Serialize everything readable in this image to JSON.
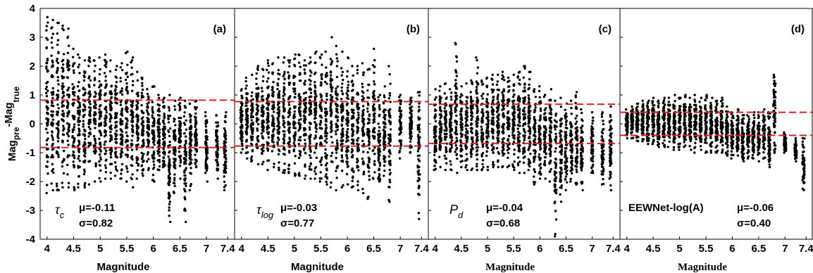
{
  "chart_data": {
    "type": "scatter",
    "ylabel": {
      "main": "Mag",
      "sub1": "pre",
      "mid": "-Mag",
      "sub2": "true"
    },
    "ylim": [
      -4,
      4
    ],
    "yticks": [
      "4",
      "3",
      "2",
      "1",
      "0",
      "-1",
      "-2",
      "-3",
      "-4"
    ],
    "xlim": [
      3.95,
      7.45
    ],
    "xticks": [
      "4",
      "4.5",
      "5",
      "5.5",
      "6",
      "6.5",
      "7",
      "7.4"
    ],
    "xtick_values": [
      4,
      4.5,
      5,
      5.5,
      6,
      6.5,
      7,
      7.4
    ],
    "grid": false,
    "panels": [
      {
        "tag": "(a)",
        "method": {
          "main": "τ",
          "sub": "c"
        },
        "mu": "μ=-0.11",
        "sigma": "σ=0.82",
        "xlabel": "Magnitude",
        "xlabel_serif": false,
        "band": [
          -0.82,
          0.82
        ],
        "columns": [
          {
            "x": 4.0,
            "min": -2.4,
            "max": 3.7
          },
          {
            "x": 4.1,
            "min": -2.3,
            "max": 3.6
          },
          {
            "x": 4.2,
            "min": -2.3,
            "max": 3.5
          },
          {
            "x": 4.3,
            "min": -2.2,
            "max": 3.4
          },
          {
            "x": 4.4,
            "min": -2.2,
            "max": 3.3
          },
          {
            "x": 4.5,
            "min": -2.3,
            "max": 2.6
          },
          {
            "x": 4.6,
            "min": -2.2,
            "max": 2.4
          },
          {
            "x": 4.7,
            "min": -2.2,
            "max": 2.2
          },
          {
            "x": 4.8,
            "min": -2.1,
            "max": 2.3
          },
          {
            "x": 4.9,
            "min": -2.0,
            "max": 2.2
          },
          {
            "x": 5.0,
            "min": -2.0,
            "max": 2.3
          },
          {
            "x": 5.1,
            "min": -1.9,
            "max": 2.4
          },
          {
            "x": 5.2,
            "min": -1.9,
            "max": 2.2
          },
          {
            "x": 5.3,
            "min": -1.8,
            "max": 2.0
          },
          {
            "x": 5.4,
            "min": -1.9,
            "max": 2.1
          },
          {
            "x": 5.5,
            "min": -2.0,
            "max": 2.5
          },
          {
            "x": 5.6,
            "min": -2.2,
            "max": 2.3
          },
          {
            "x": 5.7,
            "min": -1.9,
            "max": 1.8
          },
          {
            "x": 5.8,
            "min": -1.8,
            "max": 1.6
          },
          {
            "x": 5.9,
            "min": -1.6,
            "max": 1.2
          },
          {
            "x": 6.0,
            "min": -2.0,
            "max": 1.3
          },
          {
            "x": 6.1,
            "min": -1.6,
            "max": 1.0
          },
          {
            "x": 6.2,
            "min": -1.5,
            "max": 0.9
          },
          {
            "x": 6.3,
            "min": -3.4,
            "max": 1.0
          },
          {
            "x": 6.4,
            "min": -2.4,
            "max": 0.8
          },
          {
            "x": 6.5,
            "min": -1.9,
            "max": 0.9
          },
          {
            "x": 6.6,
            "min": -3.4,
            "max": 0.8
          },
          {
            "x": 6.7,
            "min": -2.3,
            "max": 0.7
          },
          {
            "x": 6.8,
            "min": -1.5,
            "max": 0.8
          },
          {
            "x": 7.0,
            "min": -2.0,
            "max": 0.4
          },
          {
            "x": 7.2,
            "min": -1.9,
            "max": 0.3
          },
          {
            "x": 7.35,
            "min": -2.3,
            "max": 0.4
          }
        ]
      },
      {
        "tag": "(b)",
        "method": {
          "main": "τ",
          "sub": "log"
        },
        "mu": "μ=-0.03",
        "sigma": "σ=0.77",
        "xlabel": "Magnitude",
        "xlabel_serif": false,
        "band": [
          -0.77,
          0.77
        ],
        "columns": [
          {
            "x": 4.0,
            "min": -1.0,
            "max": 1.2
          },
          {
            "x": 4.1,
            "min": -1.2,
            "max": 1.6
          },
          {
            "x": 4.2,
            "min": -1.3,
            "max": 1.7
          },
          {
            "x": 4.3,
            "min": -1.4,
            "max": 2.0
          },
          {
            "x": 4.4,
            "min": -1.4,
            "max": 1.9
          },
          {
            "x": 4.5,
            "min": -1.6,
            "max": 2.2
          },
          {
            "x": 4.6,
            "min": -1.5,
            "max": 2.1
          },
          {
            "x": 4.7,
            "min": -1.6,
            "max": 2.3
          },
          {
            "x": 4.8,
            "min": -1.7,
            "max": 2.3
          },
          {
            "x": 4.9,
            "min": -1.7,
            "max": 2.2
          },
          {
            "x": 5.0,
            "min": -1.8,
            "max": 2.4
          },
          {
            "x": 5.1,
            "min": -1.8,
            "max": 2.4
          },
          {
            "x": 5.2,
            "min": -1.9,
            "max": 2.2
          },
          {
            "x": 5.3,
            "min": -1.9,
            "max": 2.3
          },
          {
            "x": 5.4,
            "min": -1.9,
            "max": 2.5
          },
          {
            "x": 5.5,
            "min": -2.0,
            "max": 2.4
          },
          {
            "x": 5.6,
            "min": -2.1,
            "max": 2.5
          },
          {
            "x": 5.7,
            "min": -2.2,
            "max": 3.0
          },
          {
            "x": 5.8,
            "min": -2.3,
            "max": 2.7
          },
          {
            "x": 5.9,
            "min": -2.2,
            "max": 2.5
          },
          {
            "x": 6.0,
            "min": -2.1,
            "max": 2.3
          },
          {
            "x": 6.1,
            "min": -2.2,
            "max": 2.0
          },
          {
            "x": 6.2,
            "min": -2.3,
            "max": 2.0
          },
          {
            "x": 6.3,
            "min": -2.4,
            "max": 2.1
          },
          {
            "x": 6.4,
            "min": -2.6,
            "max": 1.9
          },
          {
            "x": 6.5,
            "min": -1.9,
            "max": 2.6
          },
          {
            "x": 6.6,
            "min": -2.0,
            "max": 1.0
          },
          {
            "x": 6.7,
            "min": -1.8,
            "max": 1.3
          },
          {
            "x": 6.8,
            "min": -2.7,
            "max": 2.0
          },
          {
            "x": 7.0,
            "min": -1.2,
            "max": 1.0
          },
          {
            "x": 7.2,
            "min": -1.0,
            "max": 0.9
          },
          {
            "x": 7.35,
            "min": -3.3,
            "max": 1.1
          }
        ]
      },
      {
        "tag": "(c)",
        "method": {
          "main": "P",
          "sub": "d"
        },
        "mu": "μ=-0.04",
        "sigma": "σ=0.68",
        "xlabel": "Magnitude",
        "xlabel_serif": true,
        "band": [
          -0.68,
          0.68
        ],
        "columns": [
          {
            "x": 4.0,
            "min": -1.6,
            "max": 1.2
          },
          {
            "x": 4.1,
            "min": -1.5,
            "max": 1.3
          },
          {
            "x": 4.2,
            "min": -1.6,
            "max": 1.4
          },
          {
            "x": 4.3,
            "min": -1.6,
            "max": 1.2
          },
          {
            "x": 4.4,
            "min": -1.7,
            "max": 2.8
          },
          {
            "x": 4.5,
            "min": -1.5,
            "max": 1.3
          },
          {
            "x": 4.6,
            "min": -1.6,
            "max": 1.4
          },
          {
            "x": 4.7,
            "min": -1.6,
            "max": 1.5
          },
          {
            "x": 4.8,
            "min": -1.6,
            "max": 2.3
          },
          {
            "x": 4.9,
            "min": -1.6,
            "max": 1.5
          },
          {
            "x": 5.0,
            "min": -1.6,
            "max": 1.6
          },
          {
            "x": 5.1,
            "min": -1.5,
            "max": 1.7
          },
          {
            "x": 5.2,
            "min": -1.5,
            "max": 1.7
          },
          {
            "x": 5.3,
            "min": -1.5,
            "max": 1.8
          },
          {
            "x": 5.4,
            "min": -1.5,
            "max": 1.6
          },
          {
            "x": 5.5,
            "min": -1.6,
            "max": 1.7
          },
          {
            "x": 5.6,
            "min": -1.7,
            "max": 1.8
          },
          {
            "x": 5.7,
            "min": -1.7,
            "max": 2.0
          },
          {
            "x": 5.8,
            "min": -1.6,
            "max": 1.8
          },
          {
            "x": 5.9,
            "min": -2.1,
            "max": 1.2
          },
          {
            "x": 6.0,
            "min": -1.9,
            "max": 1.3
          },
          {
            "x": 6.1,
            "min": -1.9,
            "max": 1.0
          },
          {
            "x": 6.2,
            "min": -2.0,
            "max": 1.2
          },
          {
            "x": 6.3,
            "min": -3.9,
            "max": 0.8
          },
          {
            "x": 6.4,
            "min": -2.7,
            "max": 0.9
          },
          {
            "x": 6.5,
            "min": -2.3,
            "max": 0.7
          },
          {
            "x": 6.6,
            "min": -2.0,
            "max": 0.8
          },
          {
            "x": 6.7,
            "min": -2.1,
            "max": 1.1
          },
          {
            "x": 6.8,
            "min": -2.3,
            "max": 0.5
          },
          {
            "x": 7.0,
            "min": -1.7,
            "max": 0.4
          },
          {
            "x": 7.2,
            "min": -2.1,
            "max": 0.4
          },
          {
            "x": 7.35,
            "min": -2.3,
            "max": 0.6
          }
        ]
      },
      {
        "tag": "(d)",
        "method": {
          "main": "EEWNet-log(A)",
          "sub": ""
        },
        "mu": "μ=-0.06",
        "sigma": "σ=0.40",
        "xlabel": "Magnitude",
        "xlabel_serif": true,
        "band": [
          -0.4,
          0.4
        ],
        "columns": [
          {
            "x": 4.0,
            "min": -0.5,
            "max": 0.5
          },
          {
            "x": 4.1,
            "min": -0.5,
            "max": 0.6
          },
          {
            "x": 4.2,
            "min": -0.6,
            "max": 0.7
          },
          {
            "x": 4.3,
            "min": -0.6,
            "max": 0.8
          },
          {
            "x": 4.4,
            "min": -0.7,
            "max": 0.8
          },
          {
            "x": 4.5,
            "min": -0.7,
            "max": 0.9
          },
          {
            "x": 4.6,
            "min": -0.8,
            "max": 0.8
          },
          {
            "x": 4.7,
            "min": -0.8,
            "max": 0.9
          },
          {
            "x": 4.8,
            "min": -0.8,
            "max": 0.9
          },
          {
            "x": 4.9,
            "min": -0.9,
            "max": 1.0
          },
          {
            "x": 5.0,
            "min": -0.9,
            "max": 0.9
          },
          {
            "x": 5.1,
            "min": -0.8,
            "max": 1.0
          },
          {
            "x": 5.2,
            "min": -0.9,
            "max": 0.9
          },
          {
            "x": 5.3,
            "min": -1.0,
            "max": 1.0
          },
          {
            "x": 5.4,
            "min": -0.9,
            "max": 0.9
          },
          {
            "x": 5.5,
            "min": -1.0,
            "max": 1.0
          },
          {
            "x": 5.6,
            "min": -1.0,
            "max": 0.9
          },
          {
            "x": 5.7,
            "min": -1.0,
            "max": 0.8
          },
          {
            "x": 5.8,
            "min": -1.0,
            "max": 0.9
          },
          {
            "x": 5.9,
            "min": -1.1,
            "max": 0.6
          },
          {
            "x": 6.0,
            "min": -1.2,
            "max": 0.4
          },
          {
            "x": 6.1,
            "min": -1.1,
            "max": 0.5
          },
          {
            "x": 6.2,
            "min": -1.3,
            "max": 0.3
          },
          {
            "x": 6.3,
            "min": -1.2,
            "max": 0.3
          },
          {
            "x": 6.4,
            "min": -1.2,
            "max": 0.4
          },
          {
            "x": 6.5,
            "min": -1.3,
            "max": 0.4
          },
          {
            "x": 6.6,
            "min": -1.2,
            "max": 0.5
          },
          {
            "x": 6.7,
            "min": -1.5,
            "max": 0.4
          },
          {
            "x": 6.8,
            "min": -1.0,
            "max": 1.7
          },
          {
            "x": 7.0,
            "min": -1.0,
            "max": -0.3
          },
          {
            "x": 7.2,
            "min": -1.3,
            "max": -0.5
          },
          {
            "x": 7.35,
            "min": -2.3,
            "max": -0.5
          }
        ]
      }
    ]
  },
  "colors": {
    "points": "#000000",
    "band": "#e02020",
    "axes": "#000000"
  }
}
